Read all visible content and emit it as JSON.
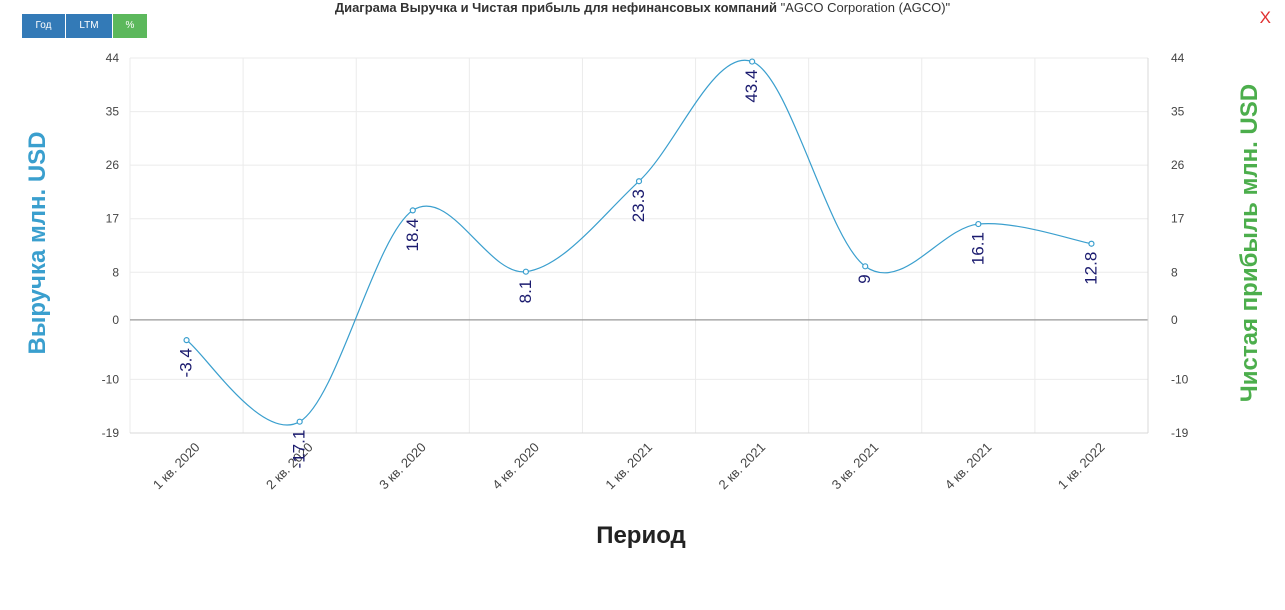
{
  "title": {
    "bold": "Диаграма Выручка и Чистая прибыль для нефинансовых компаний",
    "rest": "\"AGCO Corporation (AGCO)\""
  },
  "buttons": {
    "year": "Год",
    "ltm": "LTM",
    "percent": "%"
  },
  "close_label": "X",
  "colors": {
    "line": "#3a9fce",
    "label": "#1a1a6e",
    "right_axis_title": "#4cae4c",
    "left_axis_title": "#3a9fce"
  },
  "chart_data": {
    "type": "line",
    "categories": [
      "1 кв. 2020",
      "2 кв. 2020",
      "3 кв. 2020",
      "4 кв. 2020",
      "1 кв. 2021",
      "2 кв. 2021",
      "3 кв. 2021",
      "4 кв. 2021",
      "1 кв. 2022"
    ],
    "series": [
      {
        "values": [
          -3.4,
          -17.1,
          18.4,
          8.1,
          23.3,
          43.4,
          9,
          16.1,
          12.8
        ]
      }
    ],
    "data_labels": [
      "-3.4",
      "-17.1",
      "18.4",
      "8.1",
      "23.3",
      "43.4",
      "9",
      "16.1",
      "12.8"
    ],
    "xlabel": "Период",
    "ylabel": "Выручка млн. USD",
    "ylabel_right": "Чистая прибыль млн. USD",
    "yticks": [
      44,
      35,
      26,
      17,
      8,
      0,
      -10,
      -19
    ],
    "ytick_labels": [
      "44",
      "35",
      "26",
      "17",
      "8",
      "0",
      "-10",
      "-19"
    ],
    "ylim": [
      -19,
      44
    ],
    "grid": true,
    "legend": "none"
  }
}
